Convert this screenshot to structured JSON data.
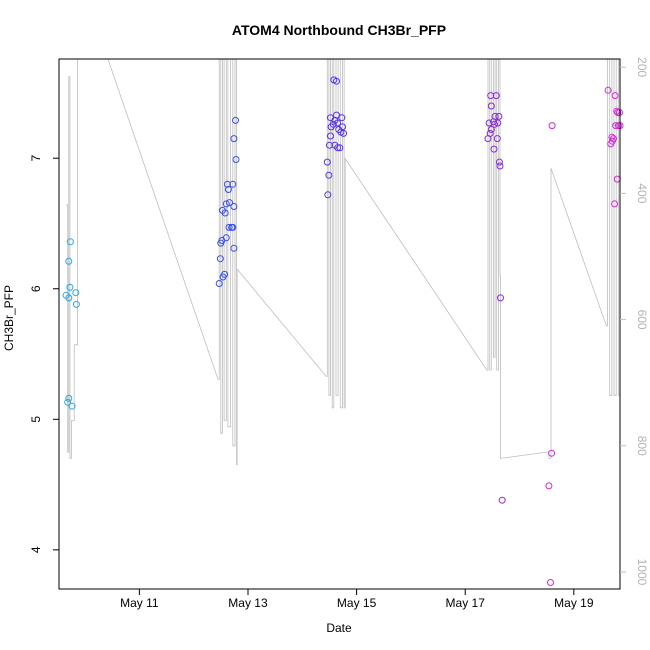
{
  "chart_data": {
    "type": "scatter",
    "title": "ATOM4 Northbound CH3Br_PFP",
    "xlabel": "Date",
    "ylabel": "CH3Br_PFP",
    "xlim": [
      9.52,
      19.85
    ],
    "ylim": [
      3.7,
      7.76
    ],
    "y2lim": [
      1027,
      187
    ],
    "x_ticks": [
      {
        "value": 11,
        "label": "May 11"
      },
      {
        "value": 13,
        "label": "May 13"
      },
      {
        "value": 15,
        "label": "May 15"
      },
      {
        "value": 17,
        "label": "May 17"
      },
      {
        "value": 19,
        "label": "May 19"
      }
    ],
    "y_ticks": [
      4,
      5,
      6,
      7
    ],
    "y2_ticks": [
      200,
      400,
      600,
      800,
      1000
    ],
    "y2_color": "#bebebe",
    "grid": false,
    "legend": "none",
    "x_unit_note": "",
    "series": [
      {
        "color": "#2aa8e8",
        "points": [
          [
            9.65,
            5.95
          ],
          [
            9.7,
            5.93
          ],
          [
            9.7,
            6.21
          ],
          [
            9.72,
            6.01
          ],
          [
            9.73,
            6.36
          ],
          [
            9.7,
            5.16
          ],
          [
            9.68,
            5.13
          ],
          [
            9.76,
            5.1
          ],
          [
            9.83,
            5.97
          ],
          [
            9.84,
            5.88
          ]
        ]
      },
      {
        "color": "#3a4fe6",
        "points": [
          [
            12.47,
            6.04
          ],
          [
            12.49,
            6.23
          ],
          [
            12.5,
            6.35
          ],
          [
            12.52,
            6.37
          ],
          [
            12.54,
            6.09
          ],
          [
            12.57,
            6.11
          ],
          [
            12.53,
            6.6
          ],
          [
            12.58,
            6.58
          ],
          [
            12.6,
            6.39
          ],
          [
            12.6,
            6.65
          ],
          [
            12.62,
            6.8
          ],
          [
            12.64,
            6.76
          ],
          [
            12.66,
            6.66
          ],
          [
            12.65,
            6.47
          ],
          [
            12.7,
            6.47
          ],
          [
            12.72,
            6.47
          ],
          [
            12.74,
            6.31
          ],
          [
            12.72,
            6.8
          ],
          [
            12.74,
            6.63
          ],
          [
            12.74,
            7.15
          ],
          [
            12.78,
            6.99
          ],
          [
            12.77,
            7.29
          ]
        ]
      },
      {
        "color": "#5a33e0",
        "points": [
          [
            14.47,
            6.72
          ],
          [
            14.49,
            6.87
          ],
          [
            14.46,
            6.97
          ],
          [
            14.5,
            7.1
          ],
          [
            14.52,
            7.17
          ],
          [
            14.53,
            7.24
          ],
          [
            14.52,
            7.31
          ],
          [
            14.57,
            7.26
          ],
          [
            14.6,
            7.29
          ],
          [
            14.63,
            7.33
          ],
          [
            14.65,
            7.27
          ],
          [
            14.67,
            7.22
          ],
          [
            14.6,
            7.1
          ],
          [
            14.65,
            7.08
          ],
          [
            14.69,
            7.08
          ],
          [
            14.71,
            7.2
          ],
          [
            14.74,
            7.24
          ],
          [
            14.73,
            7.31
          ],
          [
            14.76,
            7.19
          ],
          [
            14.58,
            7.6
          ],
          [
            14.63,
            7.59
          ]
        ]
      },
      {
        "color": "#8a2ad8",
        "points": [
          [
            17.42,
            7.15
          ],
          [
            17.46,
            7.19
          ],
          [
            17.48,
            7.22
          ],
          [
            17.44,
            7.27
          ],
          [
            17.48,
            7.4
          ],
          [
            17.47,
            7.48
          ],
          [
            17.52,
            7.28
          ],
          [
            17.54,
            7.26
          ],
          [
            17.55,
            7.32
          ],
          [
            17.57,
            7.48
          ],
          [
            17.53,
            7.07
          ],
          [
            17.59,
            7.15
          ],
          [
            17.6,
            7.27
          ],
          [
            17.62,
            7.32
          ],
          [
            17.63,
            6.97
          ],
          [
            17.64,
            6.94
          ],
          [
            17.65,
            5.93
          ],
          [
            17.68,
            4.38
          ]
        ]
      },
      {
        "color": "#d22ad8",
        "points": [
          [
            18.54,
            4.49
          ],
          [
            18.59,
            4.74
          ],
          [
            18.57,
            3.75
          ],
          [
            18.6,
            7.25
          ],
          [
            19.63,
            7.52
          ],
          [
            19.68,
            7.11
          ],
          [
            19.7,
            7.16
          ],
          [
            19.71,
            7.13
          ],
          [
            19.73,
            7.15
          ],
          [
            19.76,
            7.48
          ],
          [
            19.75,
            6.65
          ],
          [
            19.77,
            7.25
          ],
          [
            19.79,
            7.36
          ],
          [
            19.81,
            7.35
          ],
          [
            19.82,
            7.25
          ],
          [
            19.84,
            7.35
          ],
          [
            19.85,
            7.25
          ],
          [
            19.8,
            6.84
          ]
        ]
      }
    ],
    "line_series": {
      "name": "",
      "color": "#bebebe",
      "axis": "y2",
      "points": [
        [
          9.65,
          418
        ],
        [
          9.68,
          418
        ],
        [
          9.68,
          810
        ],
        [
          9.7,
          810
        ],
        [
          9.7,
          215
        ],
        [
          9.72,
          215
        ],
        [
          9.72,
          820
        ],
        [
          9.75,
          820
        ],
        [
          9.75,
          760
        ],
        [
          9.8,
          760
        ],
        [
          9.8,
          640
        ],
        [
          9.86,
          640
        ],
        [
          9.86,
          185
        ],
        [
          10.42,
          187
        ],
        [
          12.45,
          695
        ],
        [
          12.47,
          695
        ],
        [
          12.47,
          187
        ],
        [
          12.5,
          187
        ],
        [
          12.5,
          780
        ],
        [
          12.53,
          780
        ],
        [
          12.53,
          187
        ],
        [
          12.56,
          187
        ],
        [
          12.56,
          760
        ],
        [
          12.6,
          760
        ],
        [
          12.6,
          187
        ],
        [
          12.63,
          187
        ],
        [
          12.63,
          770
        ],
        [
          12.68,
          770
        ],
        [
          12.68,
          187
        ],
        [
          12.72,
          187
        ],
        [
          12.72,
          800
        ],
        [
          12.76,
          800
        ],
        [
          12.76,
          187
        ],
        [
          12.79,
          187
        ],
        [
          12.79,
          830
        ],
        [
          12.8,
          830
        ],
        [
          12.8,
          520
        ],
        [
          14.44,
          690
        ],
        [
          14.46,
          690
        ],
        [
          14.46,
          187
        ],
        [
          14.49,
          187
        ],
        [
          14.49,
          720
        ],
        [
          14.52,
          720
        ],
        [
          14.52,
          187
        ],
        [
          14.55,
          187
        ],
        [
          14.55,
          740
        ],
        [
          14.58,
          740
        ],
        [
          14.58,
          187
        ],
        [
          14.62,
          187
        ],
        [
          14.62,
          720
        ],
        [
          14.66,
          720
        ],
        [
          14.66,
          187
        ],
        [
          14.7,
          187
        ],
        [
          14.7,
          740
        ],
        [
          14.74,
          740
        ],
        [
          14.74,
          187
        ],
        [
          14.77,
          187
        ],
        [
          14.77,
          740
        ],
        [
          14.79,
          740
        ],
        [
          14.79,
          345
        ],
        [
          17.4,
          680
        ],
        [
          17.42,
          680
        ],
        [
          17.42,
          187
        ],
        [
          17.45,
          187
        ],
        [
          17.45,
          680
        ],
        [
          17.48,
          680
        ],
        [
          17.48,
          187
        ],
        [
          17.52,
          187
        ],
        [
          17.52,
          660
        ],
        [
          17.55,
          660
        ],
        [
          17.55,
          187
        ],
        [
          17.58,
          187
        ],
        [
          17.58,
          680
        ],
        [
          17.61,
          680
        ],
        [
          17.61,
          187
        ],
        [
          17.64,
          187
        ],
        [
          17.64,
          530
        ],
        [
          17.65,
          530
        ],
        [
          17.65,
          820
        ],
        [
          18.5,
          810
        ],
        [
          18.54,
          810
        ],
        [
          18.54,
          820
        ],
        [
          18.58,
          820
        ],
        [
          18.58,
          360
        ],
        [
          19.6,
          610
        ],
        [
          19.62,
          610
        ],
        [
          19.62,
          187
        ],
        [
          19.66,
          187
        ],
        [
          19.66,
          720
        ],
        [
          19.7,
          720
        ],
        [
          19.7,
          187
        ],
        [
          19.74,
          187
        ],
        [
          19.74,
          720
        ],
        [
          19.78,
          720
        ],
        [
          19.78,
          187
        ],
        [
          19.82,
          187
        ],
        [
          19.82,
          720
        ],
        [
          19.85,
          720
        ]
      ]
    }
  }
}
